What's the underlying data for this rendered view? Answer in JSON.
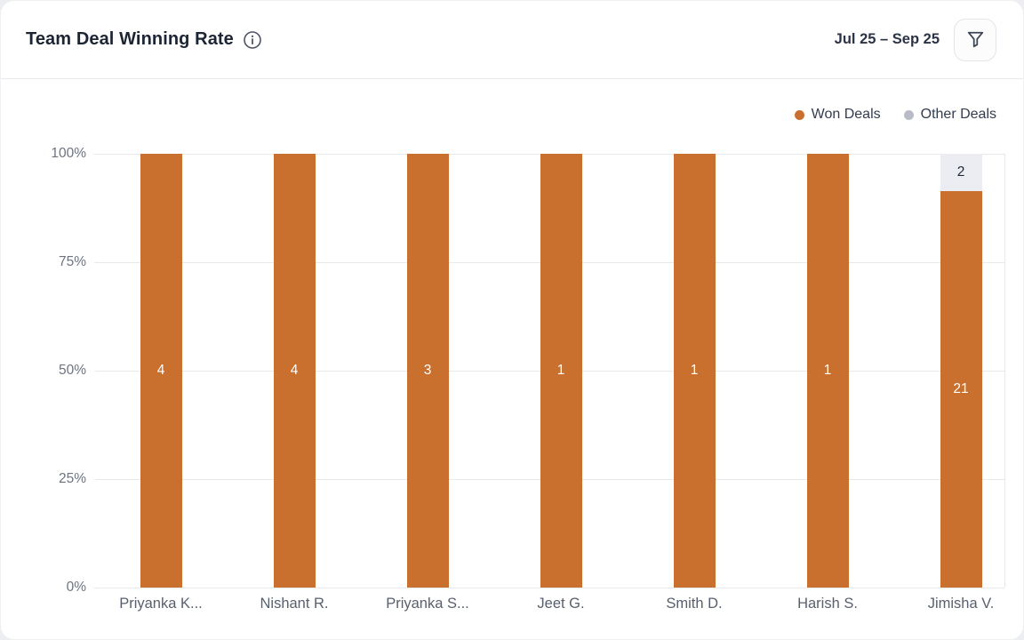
{
  "header": {
    "title": "Team Deal Winning Rate",
    "date_range": "Jul 25 – Sep 25",
    "info_icon": "info-circle",
    "filter_icon": "funnel"
  },
  "legend": {
    "position": "top-right",
    "items": [
      {
        "label": "Won Deals",
        "dot_color": "#C9702E"
      },
      {
        "label": "Other Deals",
        "dot_color": "#B9BCC8"
      }
    ]
  },
  "chart_data": {
    "type": "bar",
    "variant": "stacked-percent-column",
    "title": "Team Deal Winning Rate",
    "categories": [
      "Priyanka K...",
      "Nishant R.",
      "Priyanka S...",
      "Jeet G.",
      "Smith D.",
      "Harish S.",
      "Jimisha V."
    ],
    "series": [
      {
        "name": "Won Deals",
        "color": "#C9702E",
        "label_color": "#FFFFFF",
        "values": [
          4,
          4,
          3,
          1,
          1,
          1,
          21
        ]
      },
      {
        "name": "Other Deals",
        "color": "#ECEDF2",
        "label_color": "#1F2937",
        "values": [
          0,
          0,
          0,
          0,
          0,
          0,
          2
        ]
      }
    ],
    "won_percent_by_category": [
      100,
      100,
      100,
      100,
      100,
      100,
      91.3
    ],
    "y_ticks": [
      "100%",
      "75%",
      "50%",
      "25%",
      "0%"
    ],
    "ylim": [
      0,
      100
    ],
    "grid": "horizontal",
    "legend_position": "top-right"
  },
  "colors": {
    "page_bg": "#ECEEF1",
    "card_bg": "#FFFFFF",
    "divider": "#E9EAEE",
    "grid": "#E8E9ED",
    "axis_tick_text": "#6D7480",
    "category_text": "#59606D",
    "title_text": "#1C2534",
    "icon_stroke": "#3D4656"
  }
}
